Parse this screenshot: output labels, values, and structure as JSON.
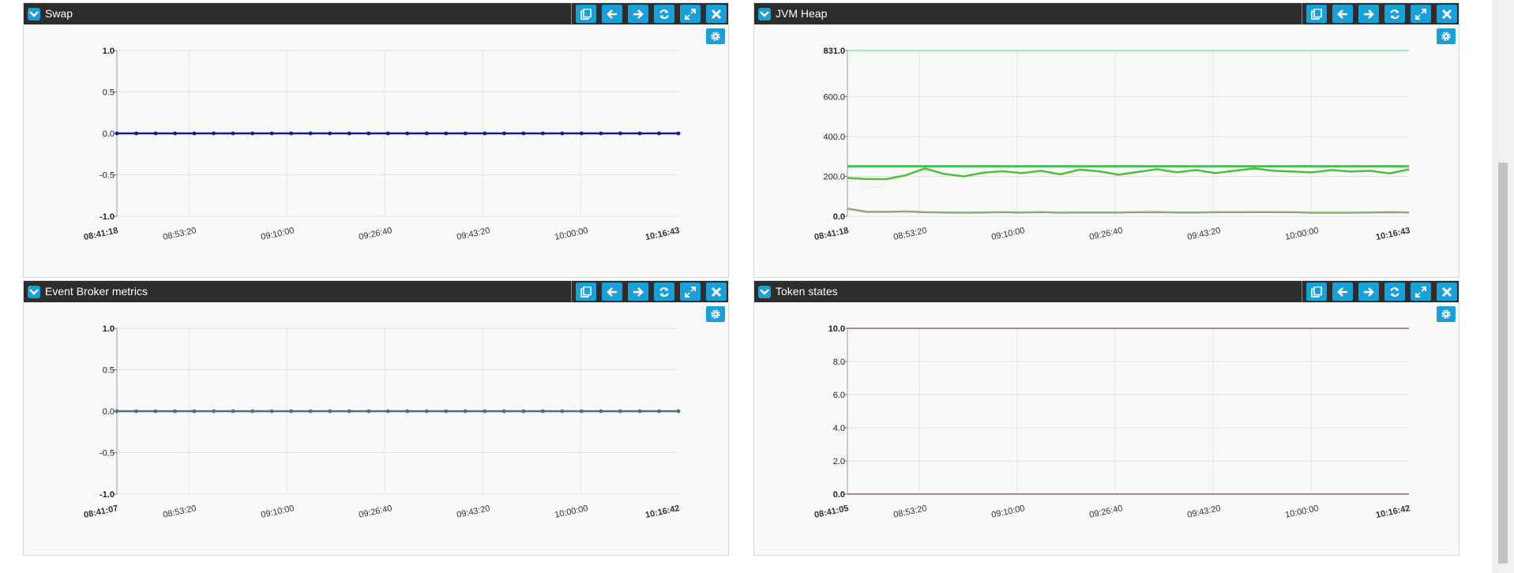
{
  "toolbar_buttons": [
    "copy-icon",
    "arrow-left-icon",
    "arrow-right-icon",
    "refresh-icon",
    "expand-icon",
    "close-icon"
  ],
  "colors": {
    "header": "#2d2d2d",
    "button": "#1a9fd6"
  },
  "widgets": {
    "swap": {
      "title": "Swap",
      "chart_data": {
        "type": "line",
        "x_start_label": "08:41:18",
        "x_end_label": "10:16:43",
        "x_ticks": [
          "08:53:20",
          "09:10:00",
          "09:26:40",
          "09:43:20",
          "10:00:00"
        ],
        "y_ticks": [
          "1.0",
          "0.5",
          "0.0",
          "-0.5",
          "-1.0"
        ],
        "ylim": [
          -1,
          1
        ],
        "series": [
          {
            "color": "#1a1a8c",
            "markers": true,
            "values": [
              0,
              0,
              0,
              0,
              0,
              0,
              0,
              0,
              0,
              0,
              0,
              0,
              0,
              0,
              0,
              0,
              0,
              0,
              0,
              0,
              0,
              0,
              0,
              0,
              0,
              0,
              0,
              0,
              0,
              0
            ]
          }
        ]
      }
    },
    "jvm": {
      "title": "JVM Heap",
      "chart_data": {
        "type": "line",
        "x_start_label": "08:41:18",
        "x_end_label": "10:16:43",
        "x_ticks": [
          "08:53:20",
          "09:10:00",
          "09:26:40",
          "09:43:20",
          "10:00:00"
        ],
        "y_ticks": [
          "831.0",
          "600.0",
          "400.0",
          "200.0",
          "0.0"
        ],
        "y_tick_values": [
          831,
          600,
          400,
          200,
          0
        ],
        "ylim": [
          0,
          831
        ],
        "series": [
          {
            "color": "#7ce8a0",
            "width": 1.5,
            "values": [
              831,
              831,
              831,
              831,
              831,
              831,
              831,
              831,
              831,
              831,
              831,
              831,
              831,
              831,
              831,
              831,
              831,
              831,
              831,
              831,
              831,
              831,
              831,
              831,
              831,
              831,
              831,
              831,
              831,
              831
            ]
          },
          {
            "color": "#2ecc40",
            "width": 3,
            "values": [
              250,
              250,
              250,
              250,
              250,
              250,
              250,
              250,
              250,
              250,
              250,
              250,
              250,
              250,
              250,
              250,
              250,
              250,
              250,
              250,
              250,
              250,
              250,
              250,
              250,
              250,
              250,
              250,
              250,
              250
            ]
          },
          {
            "color": "#4fbf3a",
            "width": 2.5,
            "values": [
              192,
              187,
              186,
              205,
              240,
              212,
              200,
              218,
              226,
              216,
              228,
              210,
              234,
              225,
              208,
              222,
              236,
              220,
              232,
              216,
              228,
              240,
              228,
              224,
              220,
              232,
              224,
              228,
              215,
              235
            ]
          },
          {
            "color": "#8fa876",
            "width": 2.5,
            "values": [
              38,
              22,
              22,
              24,
              20,
              19,
              18,
              19,
              20,
              19,
              21,
              18,
              19,
              19,
              19,
              20,
              21,
              19,
              19,
              20,
              20,
              21,
              21,
              20,
              18,
              18,
              18,
              19,
              20,
              19
            ]
          }
        ]
      }
    },
    "event": {
      "title": "Event Broker metrics",
      "chart_data": {
        "type": "line",
        "x_start_label": "08:41:07",
        "x_end_label": "10:16:42",
        "x_ticks": [
          "08:53:20",
          "09:10:00",
          "09:26:40",
          "09:43:20",
          "10:00:00"
        ],
        "y_ticks": [
          "1.0",
          "0.5",
          "0.0",
          "-0.5",
          "-1.0"
        ],
        "ylim": [
          -1,
          1
        ],
        "series": [
          {
            "color": "#4a6f8a",
            "markers": true,
            "values": [
              0,
              0,
              0,
              0,
              0,
              0,
              0,
              0,
              0,
              0,
              0,
              0,
              0,
              0,
              0,
              0,
              0,
              0,
              0,
              0,
              0,
              0,
              0,
              0,
              0,
              0,
              0,
              0,
              0,
              0
            ]
          }
        ]
      }
    },
    "token": {
      "title": "Token states",
      "chart_data": {
        "type": "line",
        "x_start_label": "08:41:05",
        "x_end_label": "10:16:42",
        "x_ticks": [
          "08:53:20",
          "09:10:00",
          "09:26:40",
          "09:43:20",
          "10:00:00"
        ],
        "y_ticks": [
          "10.0",
          "8.0",
          "6.0",
          "4.0",
          "2.0",
          "0.0"
        ],
        "ylim": [
          0,
          10
        ],
        "series": [
          {
            "color": "#9a5a78",
            "width": 1.5,
            "values": [
              10,
              10,
              10,
              10,
              10,
              10,
              10,
              10,
              10,
              10,
              10,
              10,
              10,
              10,
              10,
              10,
              10,
              10,
              10,
              10,
              10,
              10,
              10,
              10,
              10,
              10,
              10,
              10,
              10,
              10
            ]
          },
          {
            "color": "#9a5a78",
            "width": 1.5,
            "values": [
              0,
              0,
              0,
              0,
              0,
              0,
              0,
              0,
              0,
              0,
              0,
              0,
              0,
              0,
              0,
              0,
              0,
              0,
              0,
              0,
              0,
              0,
              0,
              0,
              0,
              0,
              0,
              0,
              0,
              0
            ]
          }
        ]
      }
    }
  }
}
